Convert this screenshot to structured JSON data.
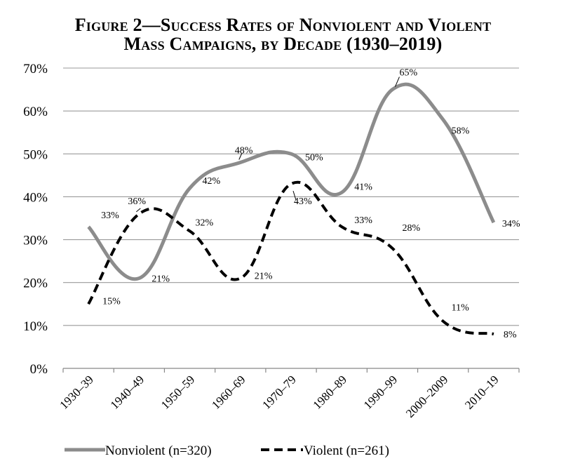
{
  "chart_data": {
    "type": "line",
    "title_line1": "Figure 2—Success Rates of Nonviolent and Violent",
    "title_line2": "Mass Campaigns, by Decade (1930–2019)",
    "xlabel": "",
    "ylabel": "",
    "ylim": [
      0,
      70
    ],
    "y_ticks": [
      "0%",
      "10%",
      "20%",
      "30%",
      "40%",
      "50%",
      "60%",
      "70%"
    ],
    "categories": [
      "1930–39",
      "1940–49",
      "1950–59",
      "1960–69",
      "1970–79",
      "1980–89",
      "1990–99",
      "2000–2009",
      "2010–19"
    ],
    "series": [
      {
        "name": "Nonviolent (n=320)",
        "color": "#8c8c8c",
        "style": "solid",
        "values": [
          33,
          21,
          42,
          48,
          50,
          41,
          65,
          58,
          34
        ],
        "labels": [
          "33%",
          "21%",
          "42%",
          "48%",
          "50%",
          "41%",
          "65%",
          "58%",
          "34%"
        ]
      },
      {
        "name": "Violent (n=261)",
        "color": "#000000",
        "style": "dashed",
        "values": [
          15,
          36,
          32,
          21,
          43,
          33,
          28,
          11,
          8
        ],
        "labels": [
          "15%",
          "36%",
          "32%",
          "21%",
          "43%",
          "33%",
          "28%",
          "11%",
          "8%"
        ]
      }
    ],
    "grid": true,
    "legend": "bottom"
  }
}
